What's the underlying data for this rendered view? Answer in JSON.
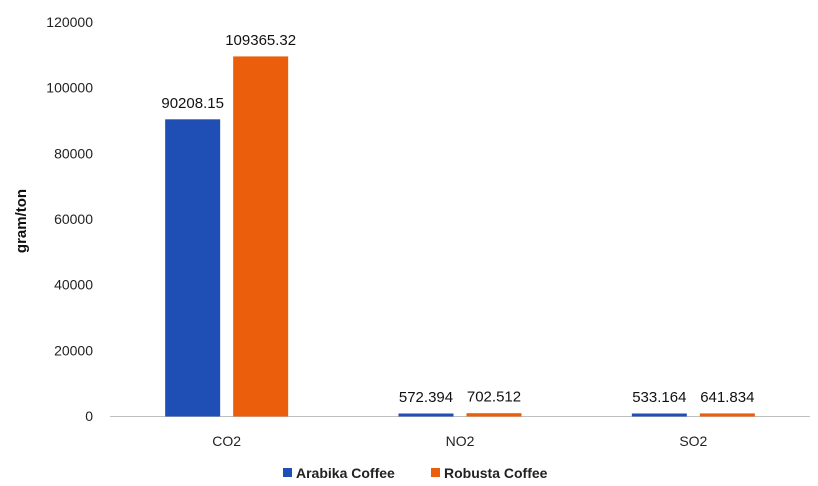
{
  "chart_data": {
    "type": "bar",
    "categories": [
      "CO2",
      "NO2",
      "SO2"
    ],
    "series": [
      {
        "name": "Arabika Coffee",
        "values": [
          90208.15,
          572.394,
          533.164
        ],
        "labels": [
          "90208.15",
          "572.394",
          "533.164"
        ],
        "color": "#1F4EB4"
      },
      {
        "name": "Robusta Coffee",
        "values": [
          109365.32,
          702.512,
          641.834
        ],
        "labels": [
          "109365.32",
          "702.512",
          "641.834"
        ],
        "color": "#EB5E0B"
      }
    ],
    "ylabel": "gram/ton",
    "xlabel": "",
    "title": "",
    "ylim": [
      0,
      120000
    ],
    "yticks": [
      0,
      20000,
      40000,
      60000,
      80000,
      100000,
      120000
    ],
    "ytick_labels": [
      "0",
      "20000",
      "40000",
      "60000",
      "80000",
      "100000",
      "120000"
    ],
    "grid": false,
    "legend_position": "bottom"
  }
}
